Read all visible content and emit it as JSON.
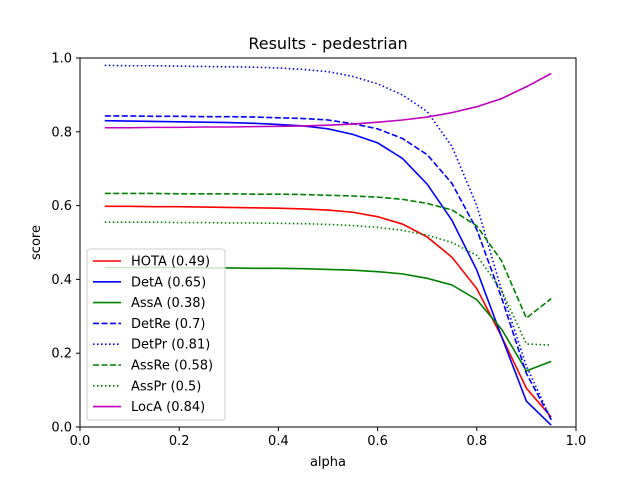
{
  "chart_data": {
    "type": "line",
    "title": "Results - pedestrian",
    "xlabel": "alpha",
    "ylabel": "score",
    "xlim": [
      0.0,
      1.0
    ],
    "ylim": [
      0.0,
      1.0
    ],
    "xticks": [
      "0.0",
      "0.2",
      "0.4",
      "0.6",
      "0.8",
      "1.0"
    ],
    "yticks": [
      "0.0",
      "0.2",
      "0.4",
      "0.6",
      "0.8",
      "1.0"
    ],
    "grid": false,
    "legend_position": "lower-left",
    "x": [
      0.05,
      0.1,
      0.15,
      0.2,
      0.25,
      0.3,
      0.35,
      0.4,
      0.45,
      0.5,
      0.55,
      0.6,
      0.65,
      0.7,
      0.75,
      0.8,
      0.85,
      0.9,
      0.95
    ],
    "series": [
      {
        "name": "HOTA (0.49)",
        "color": "#ff0000",
        "dash": "solid",
        "values": [
          0.598,
          0.598,
          0.597,
          0.597,
          0.596,
          0.595,
          0.594,
          0.593,
          0.591,
          0.588,
          0.582,
          0.57,
          0.55,
          0.515,
          0.46,
          0.375,
          0.245,
          0.105,
          0.027
        ]
      },
      {
        "name": "DetA (0.65)",
        "color": "#0000ff",
        "dash": "solid",
        "values": [
          0.83,
          0.829,
          0.828,
          0.827,
          0.826,
          0.825,
          0.823,
          0.82,
          0.816,
          0.808,
          0.793,
          0.77,
          0.728,
          0.658,
          0.56,
          0.425,
          0.245,
          0.07,
          0.005
        ]
      },
      {
        "name": "AssA (0.38)",
        "color": "#008000",
        "dash": "solid",
        "values": [
          0.432,
          0.432,
          0.432,
          0.432,
          0.431,
          0.431,
          0.43,
          0.43,
          0.429,
          0.427,
          0.425,
          0.421,
          0.415,
          0.403,
          0.385,
          0.345,
          0.265,
          0.152,
          0.178
        ]
      },
      {
        "name": "DetRe (0.7)",
        "color": "#0000ff",
        "dash": "dashed",
        "values": [
          0.843,
          0.843,
          0.842,
          0.842,
          0.841,
          0.841,
          0.84,
          0.838,
          0.836,
          0.832,
          0.822,
          0.808,
          0.782,
          0.738,
          0.66,
          0.535,
          0.35,
          0.145,
          0.02
        ]
      },
      {
        "name": "DetPr (0.81)",
        "color": "#0000ff",
        "dash": "dotted",
        "values": [
          0.98,
          0.979,
          0.979,
          0.978,
          0.977,
          0.976,
          0.975,
          0.973,
          0.969,
          0.963,
          0.95,
          0.93,
          0.9,
          0.855,
          0.76,
          0.6,
          0.37,
          0.165,
          0.02
        ]
      },
      {
        "name": "AssRe (0.58)",
        "color": "#008000",
        "dash": "dashed",
        "values": [
          0.633,
          0.633,
          0.633,
          0.632,
          0.632,
          0.632,
          0.631,
          0.631,
          0.63,
          0.628,
          0.626,
          0.623,
          0.617,
          0.606,
          0.588,
          0.545,
          0.45,
          0.295,
          0.348
        ]
      },
      {
        "name": "AssPr (0.5)",
        "color": "#008000",
        "dash": "dotted",
        "values": [
          0.555,
          0.555,
          0.555,
          0.554,
          0.554,
          0.553,
          0.553,
          0.552,
          0.551,
          0.549,
          0.546,
          0.541,
          0.533,
          0.52,
          0.5,
          0.465,
          0.37,
          0.225,
          0.222
        ]
      },
      {
        "name": "LocA (0.84)",
        "color": "#bf00bf",
        "dash": "solid",
        "values": [
          0.811,
          0.811,
          0.812,
          0.812,
          0.813,
          0.813,
          0.814,
          0.815,
          0.816,
          0.818,
          0.821,
          0.826,
          0.832,
          0.84,
          0.852,
          0.868,
          0.89,
          0.922,
          0.958
        ]
      }
    ]
  }
}
